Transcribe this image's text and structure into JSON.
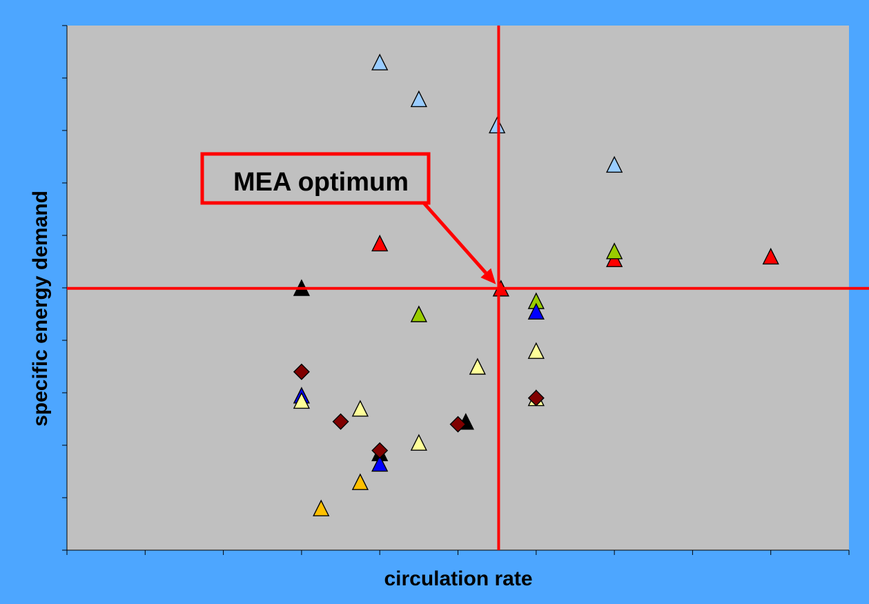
{
  "colors": {
    "page_background": "#4da6ff",
    "plot_background": "#c0c0c0",
    "reference_lines": "#ff0000",
    "callout_border": "#ff0000"
  },
  "chart_data": {
    "type": "scatter",
    "title": "",
    "xlabel": "circulation rate",
    "ylabel": "specific energy demand",
    "xlim": [
      0,
      10
    ],
    "ylim": [
      0,
      10
    ],
    "x_ticks": [
      0,
      1,
      2,
      3,
      4,
      5,
      6,
      7,
      8,
      9,
      10
    ],
    "y_ticks": [
      0,
      1,
      2,
      3,
      4,
      5,
      6,
      7,
      8,
      9,
      10
    ],
    "tick_labels_shown": false,
    "grid": false,
    "legend": "none",
    "reference_lines": {
      "x": 5.52,
      "y": 4.99
    },
    "annotation": {
      "text": "MEA optimum",
      "points_to": {
        "x": 5.52,
        "y": 4.99
      }
    },
    "series": [
      {
        "marker": "triangle",
        "color": "#99ccff",
        "points": [
          [
            4.0,
            9.3
          ],
          [
            4.5,
            8.6
          ],
          [
            5.5,
            8.1
          ],
          [
            7.0,
            7.35
          ]
        ]
      },
      {
        "marker": "triangle",
        "color": "#ff0000",
        "points": [
          [
            4.0,
            5.85
          ],
          [
            5.55,
            4.99
          ],
          [
            7.0,
            5.55
          ],
          [
            9.0,
            5.6
          ]
        ]
      },
      {
        "marker": "triangle",
        "color": "#99cc00",
        "points": [
          [
            7.0,
            5.7
          ],
          [
            4.5,
            4.5
          ],
          [
            6.0,
            4.75
          ]
        ]
      },
      {
        "marker": "triangle",
        "color": "#000000",
        "points": [
          [
            3.0,
            5.0
          ],
          [
            5.1,
            2.45
          ],
          [
            4.0,
            1.85
          ]
        ]
      },
      {
        "marker": "triangle",
        "color": "#0000ff",
        "points": [
          [
            6.0,
            4.55
          ],
          [
            3.0,
            2.95
          ],
          [
            4.0,
            1.65
          ]
        ]
      },
      {
        "marker": "triangle",
        "color": "#ffff99",
        "points": [
          [
            6.0,
            3.8
          ],
          [
            5.25,
            3.5
          ],
          [
            3.0,
            2.85
          ],
          [
            3.75,
            2.7
          ],
          [
            4.5,
            2.05
          ],
          [
            6.0,
            2.9
          ]
        ]
      },
      {
        "marker": "triangle",
        "color": "#ffc000",
        "points": [
          [
            3.75,
            1.3
          ],
          [
            3.25,
            0.8
          ]
        ]
      },
      {
        "marker": "diamond",
        "color": "#800000",
        "points": [
          [
            3.0,
            3.4
          ],
          [
            3.5,
            2.45
          ],
          [
            4.0,
            1.9
          ],
          [
            5.0,
            2.4
          ],
          [
            6.0,
            2.9
          ]
        ]
      }
    ]
  }
}
